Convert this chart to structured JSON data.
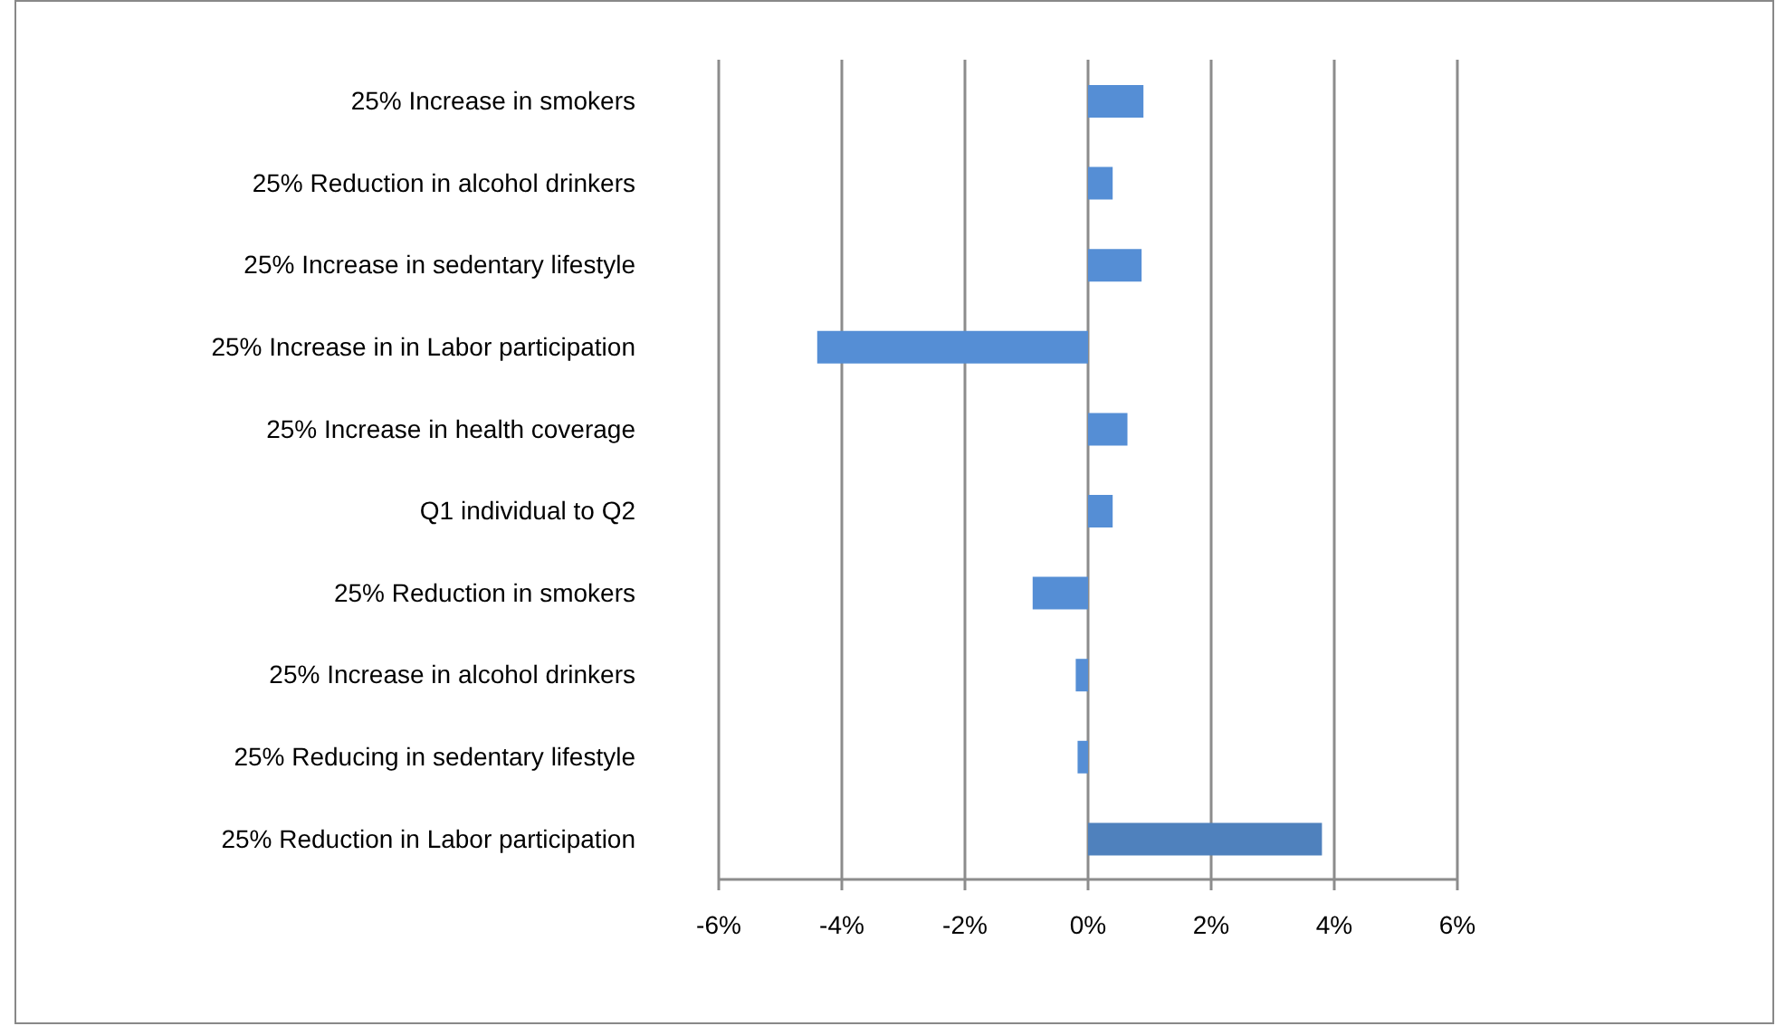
{
  "chart_data": {
    "type": "bar",
    "orientation": "horizontal",
    "categories": [
      "25% Increase in smokers",
      "25% Reduction in alcohol drinkers",
      "25% Increase in sedentary lifestyle",
      "25% Increase in in Labor participation",
      "25% Increase in  health coverage",
      "Q1 individual to Q2",
      "25% Reduction in smokers",
      "25% Increase in alcohol drinkers",
      "25% Reducing in sedentary lifestyle",
      "25% Reduction in Labor participation"
    ],
    "values": [
      0.9,
      0.4,
      0.87,
      -4.4,
      0.64,
      0.4,
      -0.9,
      -0.2,
      -0.17,
      3.8
    ],
    "colors": [
      "#558ed5",
      "#558ed5",
      "#558ed5",
      "#558ed5",
      "#558ed5",
      "#558ed5",
      "#558ed5",
      "#558ed5",
      "#558ed5",
      "#4f81bd"
    ],
    "xlim": [
      -6,
      6
    ],
    "xticks": [
      {
        "value": -6,
        "label": "-6%"
      },
      {
        "value": -4,
        "label": "-4%"
      },
      {
        "value": -2,
        "label": "-2%"
      },
      {
        "value": 0,
        "label": "0%"
      },
      {
        "value": 2,
        "label": "2%"
      },
      {
        "value": 4,
        "label": "4%"
      },
      {
        "value": 6,
        "label": "6%"
      }
    ],
    "grid": "x",
    "legend": false
  }
}
